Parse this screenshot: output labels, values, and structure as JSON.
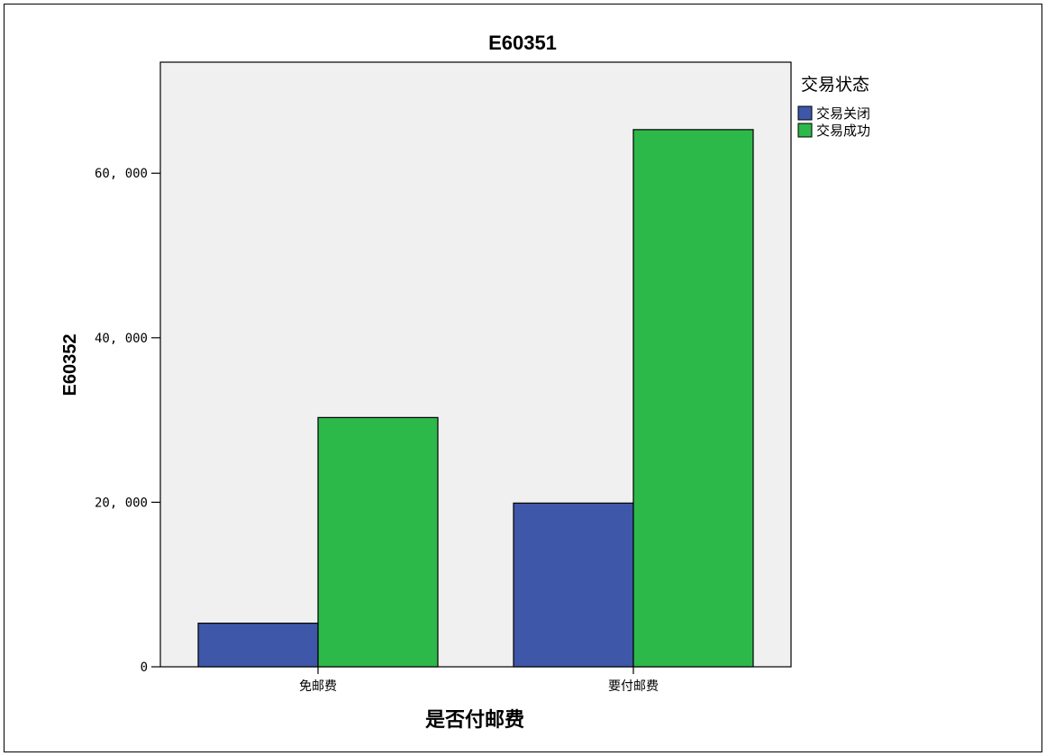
{
  "chart_data": {
    "type": "bar",
    "title": "E60351",
    "xlabel": "是否付邮费",
    "ylabel": "E60352",
    "categories": [
      "免邮费",
      "要付邮费"
    ],
    "series": [
      {
        "name": "交易关闭",
        "color": "#3f57a8",
        "values": [
          5300,
          19900
        ]
      },
      {
        "name": "交易成功",
        "color": "#2db84a",
        "values": [
          30300,
          65300
        ]
      }
    ],
    "ylim": [
      0,
      73500
    ],
    "yticks": [
      0,
      20000,
      40000,
      60000
    ],
    "ytick_labels": [
      "0",
      "20, 000",
      "40, 000",
      "60, 000"
    ],
    "legend": {
      "title": "交易状态",
      "position": "right"
    },
    "plot_background": "#f0f0f0",
    "grid": false
  }
}
